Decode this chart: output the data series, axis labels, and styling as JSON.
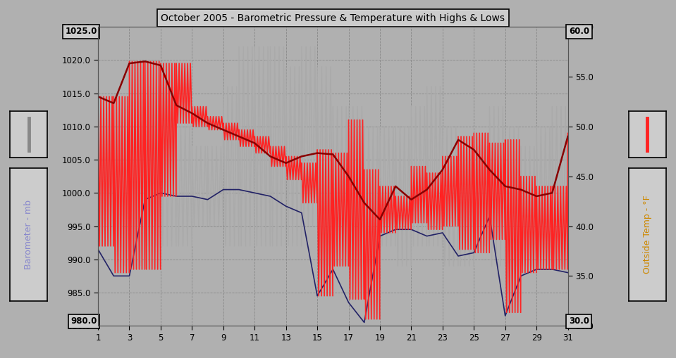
{
  "title": "October 2005 - Barometric Pressure & Temperature with Highs & Lows",
  "bg_color": "#b0b0b0",
  "plot_bg_color": "#b0b0b0",
  "left_ylabel": "Barometer - mb",
  "right_ylabel": "Outside Temp - °F",
  "left_label_color": "#8888cc",
  "right_label_color": "#cc8800",
  "ylim_left": [
    980.0,
    1025.0
  ],
  "ylim_right": [
    30.0,
    60.0
  ],
  "yticks_left": [
    980.0,
    985.0,
    990.0,
    995.0,
    1000.0,
    1005.0,
    1010.0,
    1015.0,
    1020.0,
    1025.0
  ],
  "yticks_right": [
    30.0,
    35.0,
    40.0,
    45.0,
    50.0,
    55.0,
    60.0
  ],
  "xlim": [
    1,
    31
  ],
  "xticks": [
    1,
    3,
    5,
    7,
    9,
    11,
    13,
    15,
    17,
    19,
    21,
    23,
    25,
    27,
    29,
    31
  ],
  "baro_color": "#ff2222",
  "baro_avg_color": "#880000",
  "temp_color": "#aaaaaa",
  "baro_lo_color": "#222266",
  "baro_hi": [
    1014.5,
    1014.5,
    1019.8,
    1019.8,
    1019.5,
    1019.5,
    1013.0,
    1011.5,
    1010.5,
    1009.5,
    1008.5,
    1007.0,
    1005.5,
    1004.5,
    1006.5,
    1006.0,
    1011.0,
    1003.5,
    1001.0,
    999.5,
    1004.0,
    1003.0,
    1005.5,
    1008.5,
    1009.0,
    1007.5,
    1008.0,
    1002.5,
    1001.0,
    1001.0,
    1009.0
  ],
  "baro_lo": [
    992.0,
    988.0,
    988.5,
    988.5,
    999.5,
    1010.5,
    1010.0,
    1009.5,
    1008.0,
    1007.0,
    1006.0,
    1004.0,
    1002.0,
    998.5,
    984.5,
    989.0,
    984.0,
    981.0,
    994.0,
    994.5,
    995.5,
    994.5,
    995.0,
    991.5,
    991.0,
    993.0,
    982.0,
    988.0,
    988.5,
    988.5,
    988.5
  ],
  "baro_avg": [
    1014.5,
    1013.5,
    1019.5,
    1019.8,
    1019.2,
    1013.2,
    1012.0,
    1010.5,
    1009.5,
    1008.5,
    1007.5,
    1005.5,
    1004.5,
    1005.5,
    1006.0,
    1005.8,
    1002.5,
    998.5,
    996.0,
    1001.0,
    999.0,
    1000.5,
    1003.5,
    1008.0,
    1006.5,
    1003.5,
    1001.0,
    1000.5,
    999.5,
    1000.0,
    1008.5
  ],
  "baro_lo_line": [
    991.5,
    987.5,
    987.5,
    999.0,
    1000.0,
    999.5,
    999.5,
    999.0,
    1000.5,
    1000.5,
    1000.0,
    999.5,
    998.0,
    997.0,
    984.5,
    988.5,
    983.5,
    980.5,
    993.5,
    994.5,
    994.5,
    993.5,
    994.0,
    990.5,
    991.0,
    996.5,
    981.5,
    987.5,
    988.5,
    988.5,
    988.0
  ],
  "temp_hi": [
    44.0,
    44.0,
    44.0,
    54.0,
    54.0,
    50.0,
    48.0,
    48.0,
    54.0,
    58.0,
    58.0,
    58.0,
    56.0,
    58.0,
    56.0,
    52.0,
    52.0,
    50.0,
    50.0,
    50.0,
    52.0,
    54.0,
    50.0,
    48.0,
    48.0,
    52.0,
    50.0,
    48.0,
    50.0,
    52.0,
    50.0
  ],
  "temp_lo": [
    38.0,
    36.0,
    36.0,
    38.0,
    38.0,
    38.0,
    40.0,
    40.0,
    38.0,
    38.0,
    38.0,
    38.0,
    38.0,
    40.0,
    36.0,
    36.0,
    36.0,
    36.0,
    38.0,
    36.0,
    38.0,
    38.0,
    36.0,
    36.0,
    38.0,
    36.0,
    36.0,
    36.0,
    36.0,
    36.0,
    38.0
  ],
  "temp_avg": [
    42.0,
    44.0,
    44.0,
    48.0,
    50.0,
    48.0,
    46.0,
    46.0,
    48.0,
    54.0,
    54.0,
    52.0,
    50.0,
    52.0,
    48.0,
    46.0,
    46.0,
    44.0,
    46.0,
    46.0,
    46.0,
    48.0,
    46.0,
    44.0,
    46.0,
    46.0,
    42.0,
    42.0,
    44.0,
    44.0,
    46.0
  ]
}
